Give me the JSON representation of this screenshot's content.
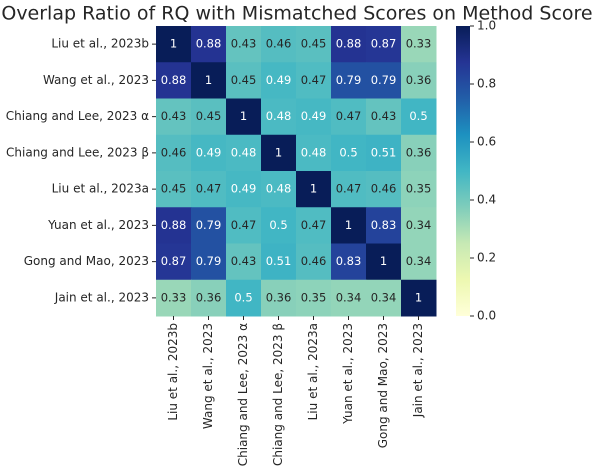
{
  "chart_data": {
    "type": "heatmap",
    "title": "Overlap Ratio of RQ with Mismatched Scores on Method Score",
    "categories": [
      "Liu et al., 2023b",
      "Wang et al., 2023",
      "Chiang and Lee, 2023 α",
      "Chiang and Lee, 2023 β",
      "Liu et al., 2023a",
      "Yuan et al., 2023",
      "Gong and Mao, 2023",
      "Jain et al., 2023"
    ],
    "rows": [
      "Liu et al., 2023b",
      "Wang et al., 2023",
      "Chiang and Lee, 2023 α",
      "Chiang and Lee, 2023 β",
      "Liu et al., 2023a",
      "Yuan et al., 2023",
      "Gong and Mao, 2023",
      "Jain et al., 2023"
    ],
    "values": [
      [
        1,
        0.88,
        0.43,
        0.46,
        0.45,
        0.88,
        0.87,
        0.33
      ],
      [
        0.88,
        1,
        0.45,
        0.49,
        0.47,
        0.79,
        0.79,
        0.36
      ],
      [
        0.43,
        0.45,
        1,
        0.48,
        0.49,
        0.47,
        0.43,
        0.5
      ],
      [
        0.46,
        0.49,
        0.48,
        1,
        0.48,
        0.5,
        0.51,
        0.36
      ],
      [
        0.45,
        0.47,
        0.49,
        0.48,
        1,
        0.47,
        0.46,
        0.35
      ],
      [
        0.88,
        0.79,
        0.47,
        0.5,
        0.47,
        1,
        0.83,
        0.34
      ],
      [
        0.87,
        0.79,
        0.43,
        0.51,
        0.46,
        0.83,
        1,
        0.34
      ],
      [
        0.33,
        0.36,
        0.5,
        0.36,
        0.35,
        0.34,
        0.34,
        1
      ]
    ],
    "colormap": [
      "#ffffd9",
      "#edf8b1",
      "#c7e9b4",
      "#7fcdbb",
      "#41b6c4",
      "#1d91c0",
      "#225ea8",
      "#253494",
      "#081d58"
    ],
    "clim": [
      0,
      1
    ],
    "cticks": [
      {
        "value": 0,
        "label": "0.0"
      },
      0.2,
      0.4,
      0.6,
      0.8,
      {
        "value": 1,
        "label": "1.0"
      }
    ]
  }
}
